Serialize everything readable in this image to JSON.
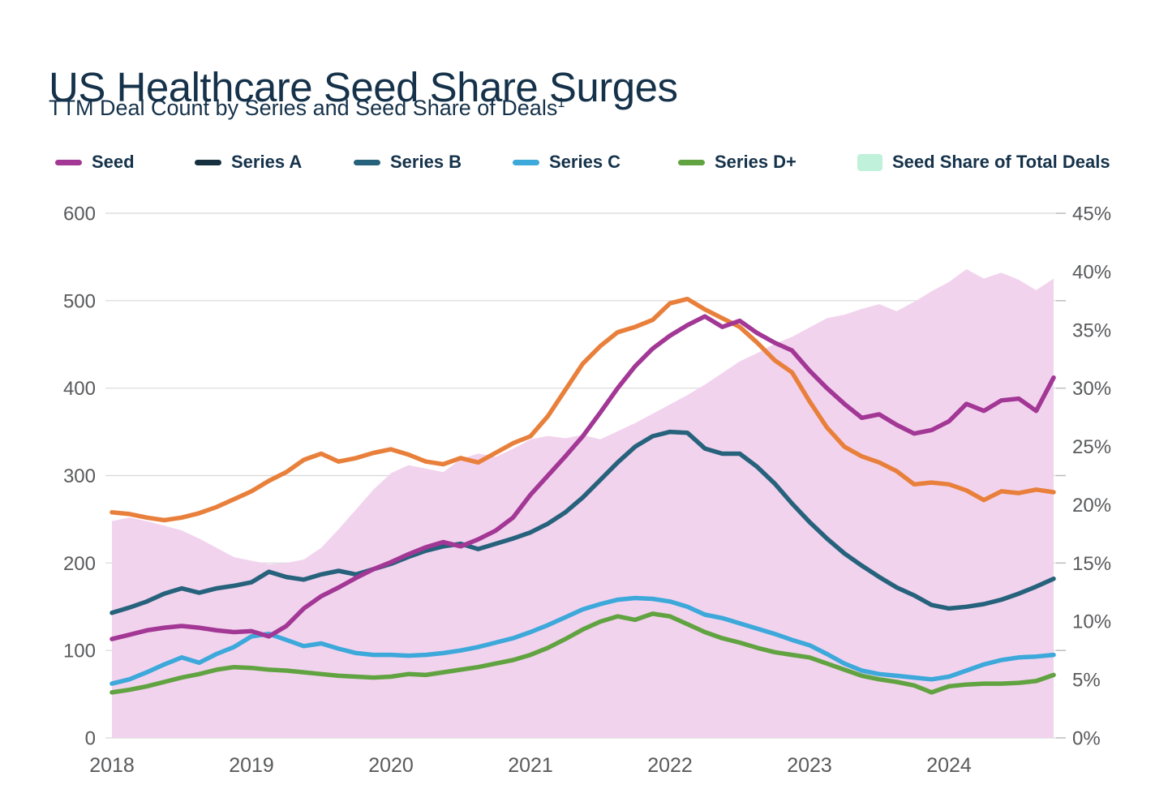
{
  "header": {
    "title": "US Healthcare Seed Share Surges",
    "subtitle": "TTM Deal Count by Series and Seed Share of Deals",
    "subtitle_superscript": "1"
  },
  "colors": {
    "heading_text": "#15324a",
    "axis_text": "#595a5c",
    "gridline": "#d8d8d8",
    "tick": "#bcbcbc",
    "background": "#ffffff"
  },
  "legend": {
    "items": [
      {
        "label": "Seed",
        "swatch": "line",
        "color": "#a23795"
      },
      {
        "label": "Series A",
        "swatch": "line",
        "color": "#16303f"
      },
      {
        "label": "Series B",
        "swatch": "line",
        "color": "#27627c"
      },
      {
        "label": "Series C",
        "swatch": "line",
        "color": "#3da8da"
      },
      {
        "label": "Series D+",
        "swatch": "line",
        "color": "#61a341"
      },
      {
        "label": "Seed Share of Total Deals",
        "swatch": "area",
        "color": "#c0f1da"
      }
    ]
  },
  "chart_data": {
    "type": "line",
    "title": "US Healthcare Seed Share Surges",
    "subtitle": "TTM Deal Count by Series and Seed Share of Deals",
    "x_start_year": 2018,
    "x_step_years": 0.125,
    "x_tick_labels": [
      "2018",
      "2019",
      "2020",
      "2021",
      "2022",
      "2023",
      "2024"
    ],
    "left_axis": {
      "min": 0,
      "max": 600,
      "tick_labels": [
        "600",
        "500",
        "400",
        "300",
        "200",
        "100",
        "0"
      ],
      "gridline_values": [
        600,
        500,
        400,
        300,
        200,
        100,
        0
      ]
    },
    "right_axis": {
      "min": 0,
      "max": 45,
      "tick_labels": [
        "45%",
        "40%",
        "35%",
        "30%",
        "25%",
        "20%",
        "15%",
        "10%",
        "5%",
        "0%"
      ]
    },
    "grid": {
      "horizontal": true,
      "vertical": false
    },
    "legend_position": "top",
    "series": [
      {
        "name": "Seed",
        "kind": "line",
        "axis": "left",
        "color": "#a23795",
        "values": [
          113,
          118,
          123,
          126,
          128,
          126,
          123,
          121,
          122,
          116,
          128,
          148,
          162,
          172,
          183,
          193,
          201,
          210,
          218,
          224,
          219,
          227,
          237,
          252,
          278,
          300,
          322,
          345,
          372,
          400,
          425,
          445,
          460,
          472,
          482,
          470,
          477,
          463,
          452,
          443,
          420,
          400,
          382,
          366,
          370,
          358,
          348,
          352,
          362,
          382,
          374,
          386,
          388,
          374,
          412
        ]
      },
      {
        "name": "Series A",
        "kind": "line",
        "axis": "left",
        "color": "#e8803c",
        "legend_color": "#16303f",
        "values": [
          258,
          256,
          252,
          249,
          252,
          257,
          264,
          273,
          282,
          294,
          304,
          318,
          325,
          316,
          320,
          326,
          330,
          324,
          316,
          313,
          320,
          315,
          326,
          337,
          345,
          368,
          398,
          428,
          448,
          464,
          470,
          478,
          497,
          502,
          490,
          480,
          470,
          452,
          432,
          418,
          385,
          355,
          333,
          322,
          315,
          305,
          290,
          292,
          290,
          283,
          272,
          282,
          280,
          284,
          281
        ]
      },
      {
        "name": "Series B",
        "kind": "line",
        "axis": "left",
        "color": "#27627c",
        "values": [
          143,
          149,
          156,
          165,
          171,
          166,
          171,
          174,
          178,
          190,
          184,
          181,
          187,
          191,
          187,
          193,
          199,
          207,
          214,
          219,
          222,
          216,
          222,
          228,
          235,
          245,
          258,
          275,
          295,
          315,
          333,
          345,
          350,
          349,
          331,
          325,
          325,
          310,
          291,
          268,
          247,
          228,
          211,
          197,
          184,
          172,
          163,
          152,
          148,
          150,
          153,
          158,
          165,
          173,
          182
        ]
      },
      {
        "name": "Series C",
        "kind": "line",
        "axis": "left",
        "color": "#3da8da",
        "values": [
          62,
          67,
          75,
          84,
          92,
          86,
          96,
          104,
          116,
          119,
          112,
          105,
          108,
          102,
          97,
          95,
          95,
          94,
          95,
          97,
          100,
          104,
          109,
          114,
          121,
          129,
          138,
          147,
          153,
          158,
          160,
          159,
          156,
          150,
          141,
          137,
          131,
          125,
          119,
          112,
          106,
          96,
          85,
          77,
          73,
          71,
          69,
          67,
          70,
          77,
          84,
          89,
          92,
          93,
          95
        ]
      },
      {
        "name": "Series D+",
        "kind": "line",
        "axis": "left",
        "color": "#61a341",
        "values": [
          52,
          55,
          59,
          64,
          69,
          73,
          78,
          81,
          80,
          78,
          77,
          75,
          73,
          71,
          70,
          69,
          70,
          73,
          72,
          75,
          78,
          81,
          85,
          89,
          95,
          103,
          113,
          124,
          133,
          139,
          135,
          142,
          139,
          130,
          121,
          114,
          109,
          103,
          98,
          95,
          92,
          85,
          78,
          71,
          67,
          64,
          60,
          52,
          59,
          61,
          62,
          62,
          63,
          65,
          72
        ]
      },
      {
        "name": "Seed Share of Total Deals",
        "kind": "area",
        "axis": "right",
        "color": "#f2d3ee",
        "legend_color": "#c0f1da",
        "values": [
          18.6,
          18.9,
          18.6,
          18.2,
          17.8,
          17.1,
          16.3,
          15.5,
          15.2,
          14.9,
          15.0,
          15.3,
          16.3,
          17.9,
          19.6,
          21.3,
          22.7,
          23.4,
          23.1,
          22.8,
          23.9,
          24.4,
          24.1,
          24.8,
          25.6,
          25.9,
          25.7,
          26.0,
          25.6,
          26.3,
          27.0,
          27.8,
          28.6,
          29.4,
          30.3,
          31.3,
          32.3,
          33.0,
          33.8,
          34.4,
          35.2,
          36.0,
          36.3,
          36.8,
          37.2,
          36.6,
          37.4,
          38.3,
          39.1,
          40.2,
          39.4,
          39.9,
          39.3,
          38.4,
          39.4
        ]
      }
    ]
  }
}
